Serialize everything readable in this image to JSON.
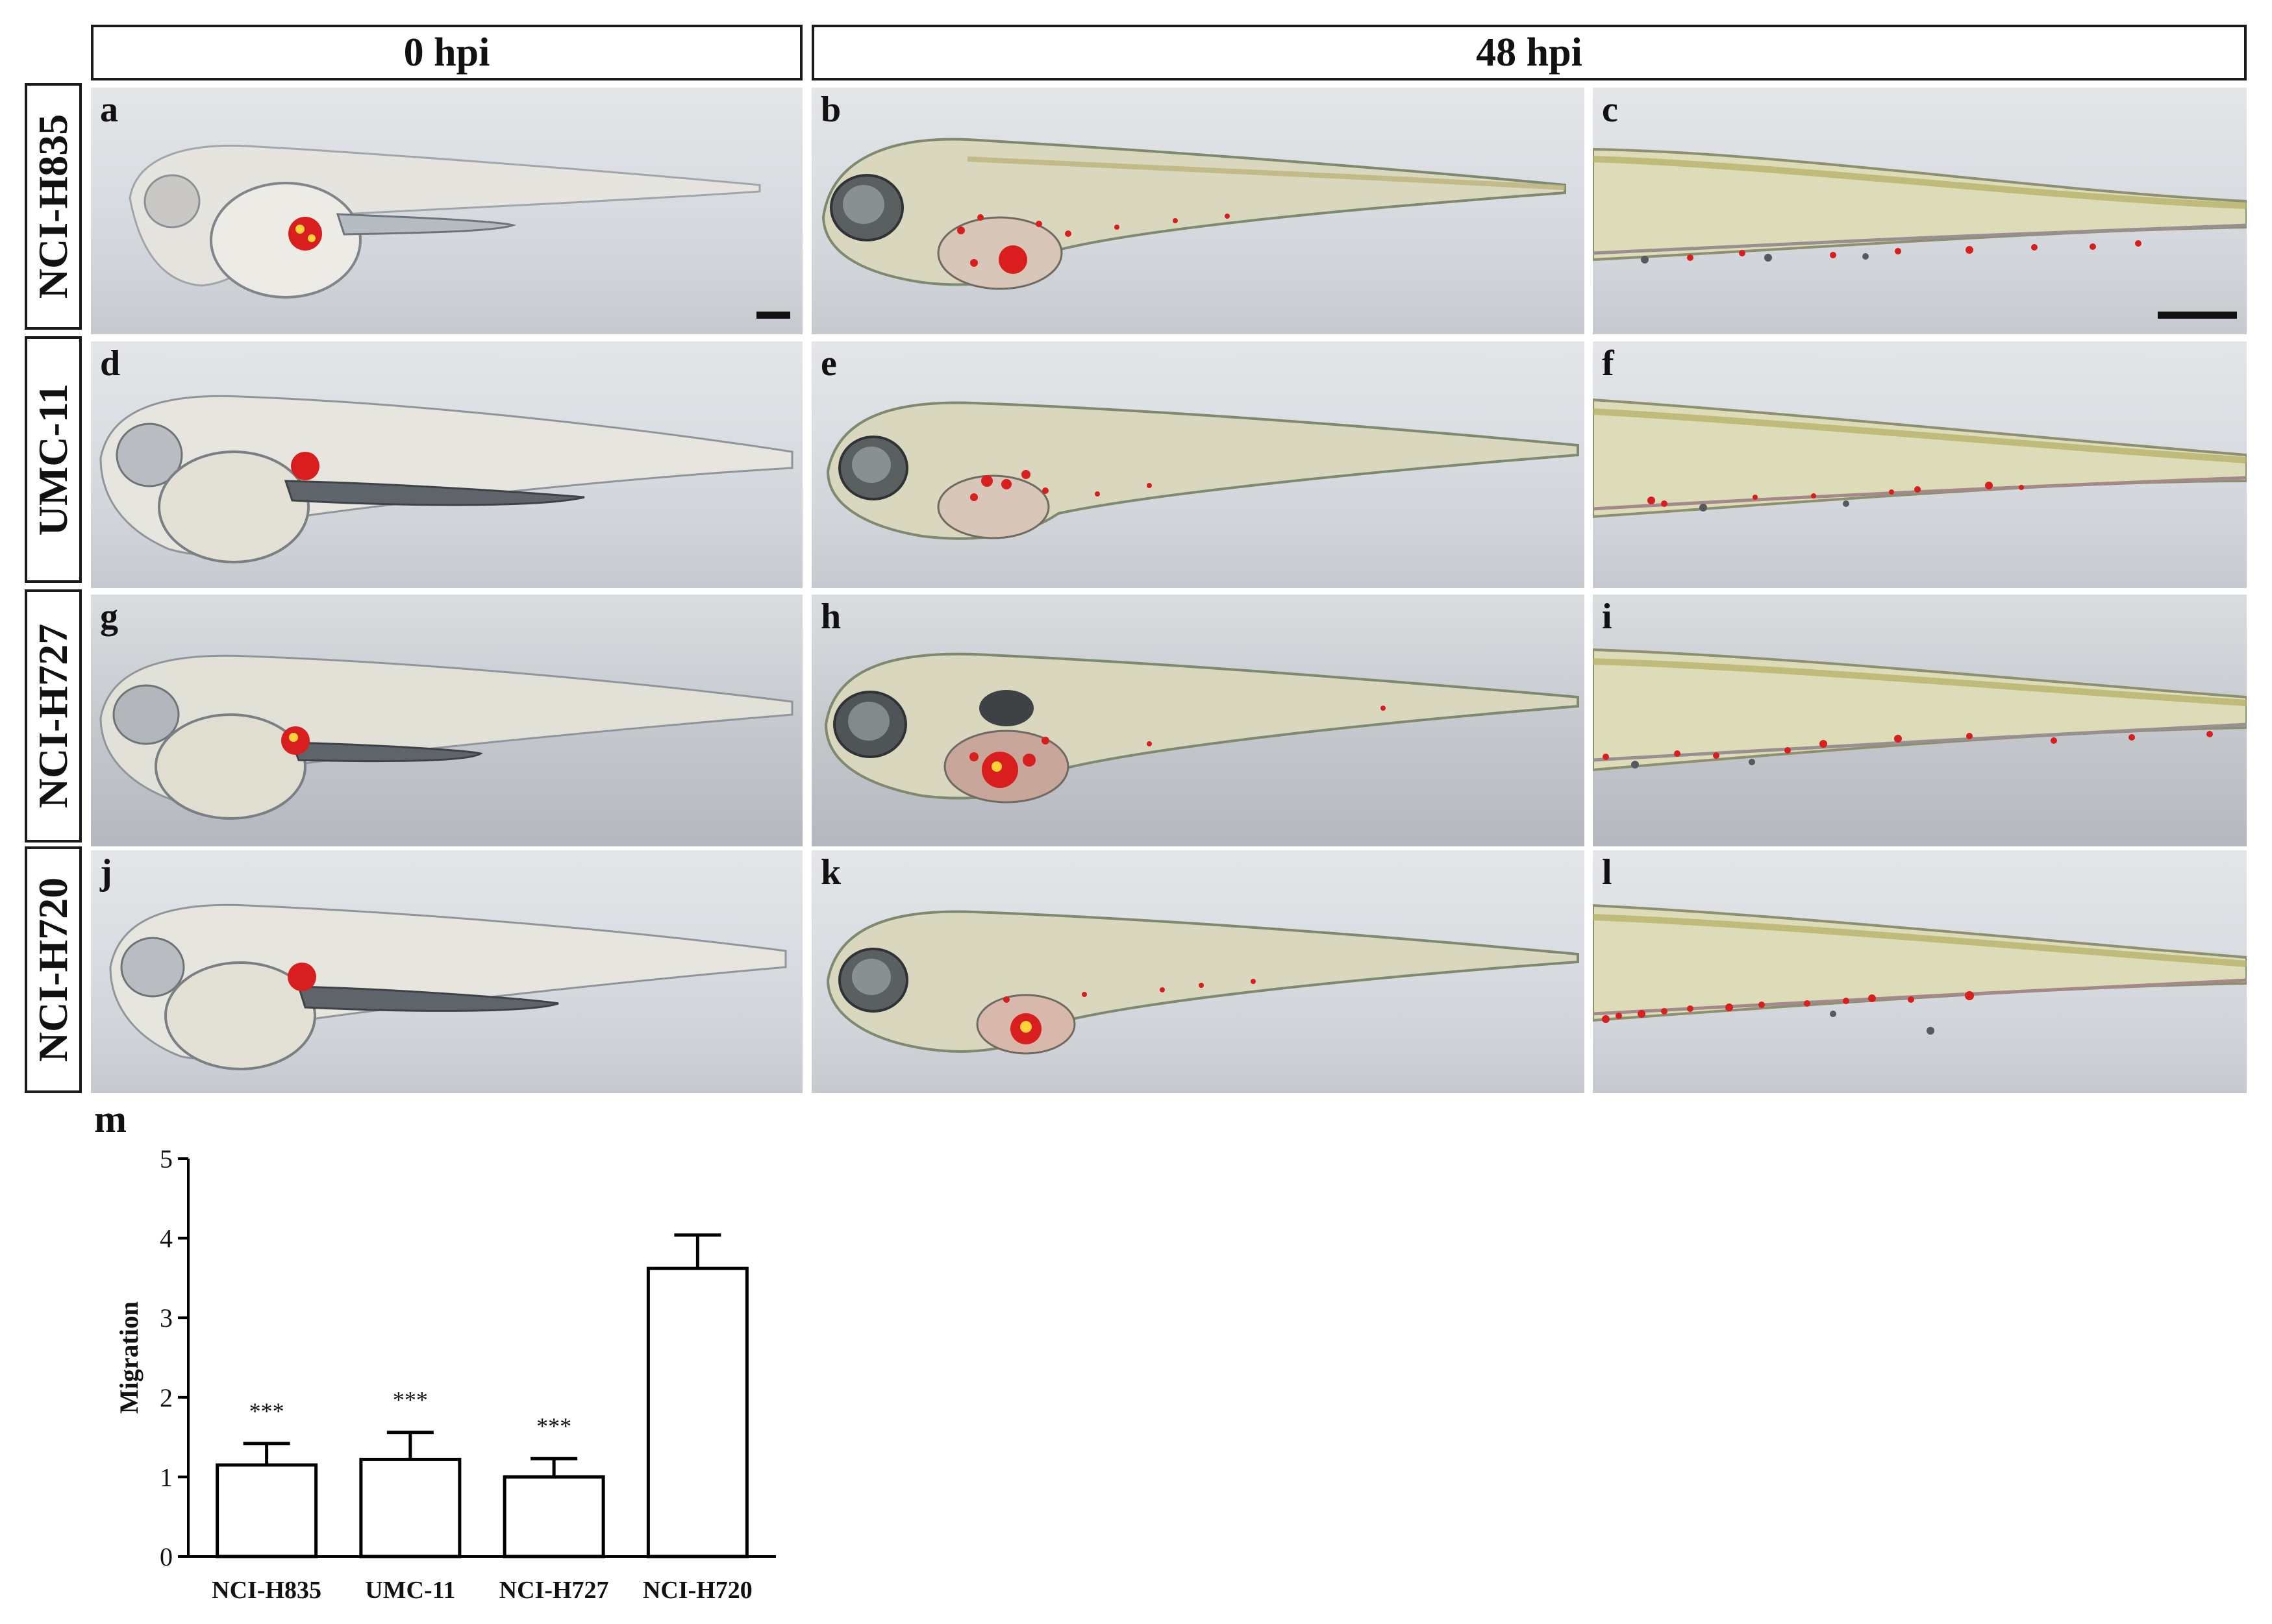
{
  "headers": {
    "left": "0 hpi",
    "right": "48 hpi"
  },
  "rows": [
    {
      "label": "NCI-H835",
      "panels": [
        "a",
        "b",
        "c"
      ]
    },
    {
      "label": "UMC-11",
      "panels": [
        "d",
        "e",
        "f"
      ]
    },
    {
      "label": "NCI-H727",
      "panels": [
        "g",
        "h",
        "i"
      ]
    },
    {
      "label": "NCI-H720",
      "panels": [
        "j",
        "k",
        "l"
      ]
    }
  ],
  "chart_panel_label": "m",
  "chart_data": {
    "type": "bar",
    "categories": [
      "NCI-H835",
      "UMC-11",
      "NCI-H727",
      "NCI-H720"
    ],
    "values": [
      1.15,
      1.22,
      1.0,
      3.62
    ],
    "errors": [
      0.27,
      0.34,
      0.23,
      0.42
    ],
    "annotations": [
      "***",
      "***",
      "***",
      ""
    ],
    "title": "",
    "xlabel": "",
    "ylabel": "Migration",
    "ylim": [
      0,
      5
    ],
    "yticks": [
      0,
      1,
      2,
      3,
      4,
      5
    ],
    "grid": false,
    "legend": "none"
  },
  "colors": {
    "cells": "#d81e1e",
    "bar_fill": "#ffffff",
    "bar_stroke": "#000000"
  }
}
